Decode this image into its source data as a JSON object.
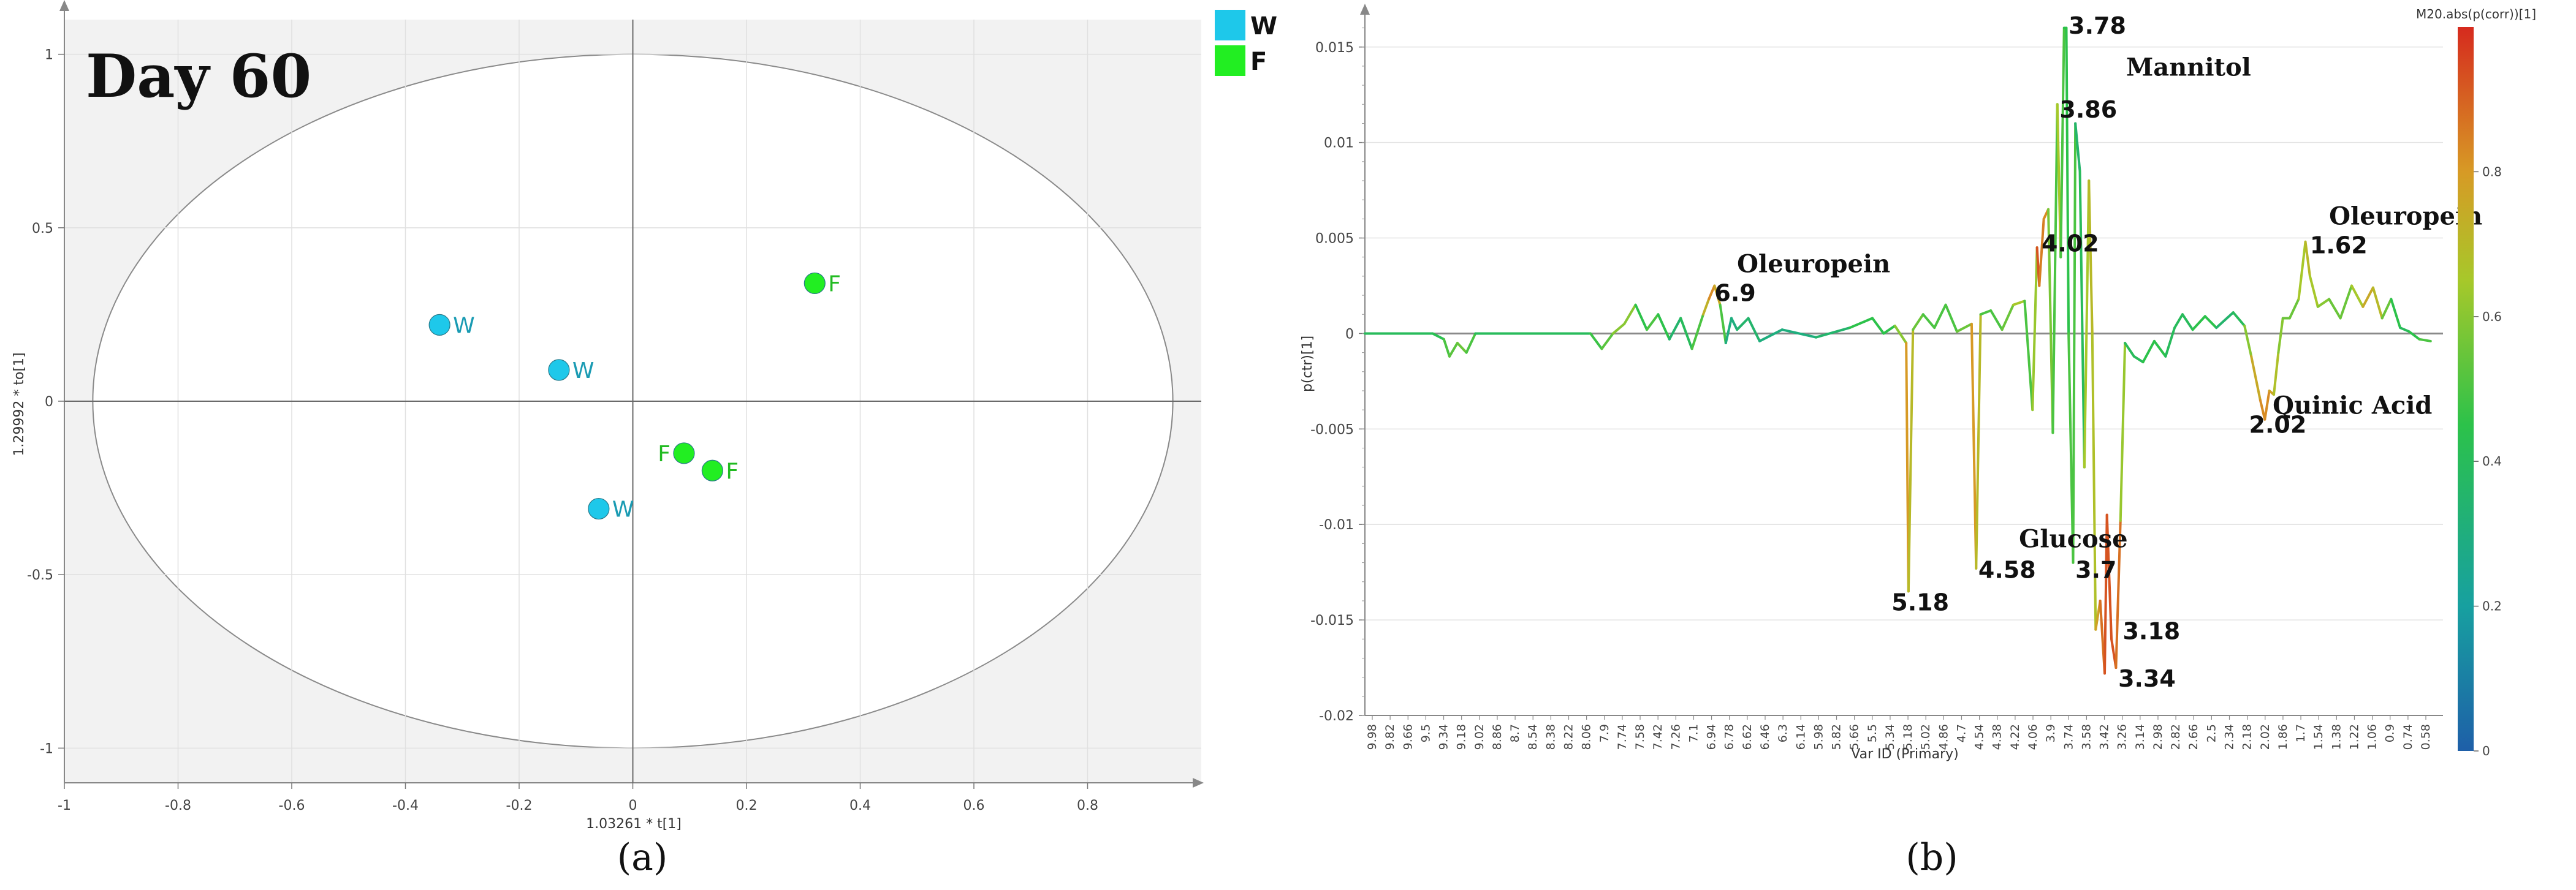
{
  "colors": {
    "W": "#1ec8ea",
    "W_label": "#1a9bb3",
    "F": "#22ee22",
    "F_label": "#22bb22",
    "plot_bg": "#f2f2f2",
    "ellipse_fill": "#ffffff"
  },
  "panel_a": {
    "caption": "(a)",
    "title": "Day 60",
    "legend": [
      {
        "key": "W",
        "label": "W"
      },
      {
        "key": "F",
        "label": "F"
      }
    ]
  },
  "panel_b": {
    "caption": "(b)"
  },
  "chart_data": [
    {
      "type": "scatter",
      "panel": "(a)",
      "title": "Day 60",
      "xlabel": "1.03261 * t[1]",
      "ylabel": "1.29992 * to[1]",
      "xlim": [
        -1,
        1
      ],
      "ylim": [
        -1.1,
        1.1
      ],
      "xticks": [
        "-1",
        "-0.8",
        "-0.6",
        "-0.4",
        "-0.2",
        "0",
        "0.2",
        "0.4",
        "0.6",
        "0.8"
      ],
      "yticks": [
        "1",
        "0.5",
        "0",
        "-0.5",
        "-1"
      ],
      "grid": true,
      "legend_position": "outside top-right",
      "ellipse": {
        "center": [
          0,
          0
        ],
        "rx": 0.95,
        "ry": 1.0
      },
      "series": [
        {
          "name": "W",
          "points": [
            {
              "x": -0.34,
              "y": 0.22
            },
            {
              "x": -0.13,
              "y": 0.09
            },
            {
              "x": -0.06,
              "y": -0.31
            }
          ]
        },
        {
          "name": "F",
          "points": [
            {
              "x": 0.32,
              "y": 0.34
            },
            {
              "x": 0.09,
              "y": -0.15
            },
            {
              "x": 0.14,
              "y": -0.2
            }
          ]
        }
      ]
    },
    {
      "type": "line",
      "panel": "(b)",
      "xlabel": "Var ID (Primary)",
      "ylabel": "p(ctr)[1]",
      "xlim": [
        10.0,
        0.44
      ],
      "ylim": [
        -0.02,
        0.0165
      ],
      "yticks": [
        "0.015",
        "0.01",
        "0.005",
        "0",
        "-0.005",
        "-0.01",
        "-0.015",
        "-0.02"
      ],
      "xticks": [
        "9.98",
        "9.82",
        "9.66",
        "9.5",
        "9.34",
        "9.18",
        "9.02",
        "8.86",
        "8.7",
        "8.54",
        "8.38",
        "8.22",
        "8.06",
        "7.9",
        "7.74",
        "7.58",
        "7.42",
        "7.26",
        "7.1",
        "6.94",
        "6.78",
        "6.62",
        "6.46",
        "6.3",
        "6.14",
        "5.98",
        "5.82",
        "5.66",
        "5.5",
        "5.34",
        "5.18",
        "5.02",
        "4.86",
        "4.7",
        "4.54",
        "4.38",
        "4.22",
        "4.06",
        "3.9",
        "3.74",
        "3.58",
        "3.42",
        "3.26",
        "3.14",
        "2.98",
        "2.82",
        "2.66",
        "2.5",
        "2.34",
        "2.18",
        "2.02",
        "1.86",
        "1.7",
        "1.54",
        "1.38",
        "1.22",
        "1.06",
        "0.9",
        "0.74",
        "0.58"
      ],
      "colorbar": {
        "title": "M20.abs(p(corr))[1]",
        "ticks": [
          "0.8",
          "0.6",
          "0.4",
          "0.2",
          "0"
        ],
        "range": [
          0,
          1
        ]
      },
      "points": [
        {
          "x": 10.0,
          "y": 0.0,
          "c": 0.4
        },
        {
          "x": 9.4,
          "y": 0.0,
          "c": 0.4
        },
        {
          "x": 9.3,
          "y": -0.0003,
          "c": 0.45
        },
        {
          "x": 9.25,
          "y": -0.0012,
          "c": 0.55
        },
        {
          "x": 9.18,
          "y": -0.0005,
          "c": 0.5
        },
        {
          "x": 9.1,
          "y": -0.001,
          "c": 0.6
        },
        {
          "x": 9.02,
          "y": 0.0,
          "c": 0.4
        },
        {
          "x": 8.0,
          "y": 0.0,
          "c": 0.4
        },
        {
          "x": 7.9,
          "y": -0.0008,
          "c": 0.55
        },
        {
          "x": 7.8,
          "y": 0.0,
          "c": 0.5
        },
        {
          "x": 7.7,
          "y": 0.0005,
          "c": 0.7
        },
        {
          "x": 7.6,
          "y": 0.0015,
          "c": 0.5
        },
        {
          "x": 7.5,
          "y": 0.0002,
          "c": 0.4
        },
        {
          "x": 7.4,
          "y": 0.001,
          "c": 0.6
        },
        {
          "x": 7.3,
          "y": -0.0003,
          "c": 0.3
        },
        {
          "x": 7.2,
          "y": 0.0008,
          "c": 0.4
        },
        {
          "x": 7.1,
          "y": -0.0008,
          "c": 0.4
        },
        {
          "x": 7.0,
          "y": 0.001,
          "c": 0.6
        },
        {
          "x": 6.95,
          "y": 0.0018,
          "c": 0.85
        },
        {
          "x": 6.9,
          "y": 0.0025,
          "c": 0.8
        },
        {
          "x": 6.85,
          "y": 0.0015,
          "c": 0.7
        },
        {
          "x": 6.8,
          "y": -0.0005,
          "c": 0.3
        },
        {
          "x": 6.75,
          "y": 0.0008,
          "c": 0.3
        },
        {
          "x": 6.7,
          "y": 0.0002,
          "c": 0.3
        },
        {
          "x": 6.6,
          "y": 0.0008,
          "c": 0.4
        },
        {
          "x": 6.5,
          "y": -0.0004,
          "c": 0.3
        },
        {
          "x": 6.3,
          "y": 0.0002,
          "c": 0.3
        },
        {
          "x": 6.0,
          "y": -0.0002,
          "c": 0.3
        },
        {
          "x": 5.7,
          "y": 0.0003,
          "c": 0.4
        },
        {
          "x": 5.5,
          "y": 0.0008,
          "c": 0.5
        },
        {
          "x": 5.4,
          "y": 0.0,
          "c": 0.4
        },
        {
          "x": 5.3,
          "y": 0.0004,
          "c": 0.5
        },
        {
          "x": 5.2,
          "y": -0.0005,
          "c": 0.7
        },
        {
          "x": 5.18,
          "y": -0.0135,
          "c": 0.9
        },
        {
          "x": 5.14,
          "y": 0.0002,
          "c": 0.5
        },
        {
          "x": 5.05,
          "y": 0.001,
          "c": 0.6
        },
        {
          "x": 4.95,
          "y": 0.0003,
          "c": 0.4
        },
        {
          "x": 4.85,
          "y": 0.0015,
          "c": 0.6
        },
        {
          "x": 4.75,
          "y": 0.0001,
          "c": 0.4
        },
        {
          "x": 4.62,
          "y": 0.0005,
          "c": 0.7
        },
        {
          "x": 4.58,
          "y": -0.0123,
          "c": 0.9
        },
        {
          "x": 4.54,
          "y": 0.001,
          "c": 0.5
        },
        {
          "x": 4.45,
          "y": 0.0012,
          "c": 0.5
        },
        {
          "x": 4.35,
          "y": 0.0002,
          "c": 0.5
        },
        {
          "x": 4.25,
          "y": 0.0015,
          "c": 0.6
        },
        {
          "x": 4.15,
          "y": 0.0017,
          "c": 0.7
        },
        {
          "x": 4.08,
          "y": -0.004,
          "c": 0.3
        },
        {
          "x": 4.04,
          "y": 0.0045,
          "c": 0.95
        },
        {
          "x": 4.02,
          "y": 0.0025,
          "c": 0.9
        },
        {
          "x": 3.98,
          "y": 0.006,
          "c": 0.8
        },
        {
          "x": 3.94,
          "y": 0.0065,
          "c": 0.85
        },
        {
          "x": 3.9,
          "y": -0.0052,
          "c": 0.3
        },
        {
          "x": 3.86,
          "y": 0.012,
          "c": 0.7
        },
        {
          "x": 3.83,
          "y": 0.004,
          "c": 0.6
        },
        {
          "x": 3.8,
          "y": 0.016,
          "c": 0.4
        },
        {
          "x": 3.78,
          "y": 0.016,
          "c": 0.5
        },
        {
          "x": 3.76,
          "y": 0.0,
          "c": 0.4
        },
        {
          "x": 3.72,
          "y": -0.012,
          "c": 0.6
        },
        {
          "x": 3.7,
          "y": 0.011,
          "c": 0.4
        },
        {
          "x": 3.66,
          "y": 0.0085,
          "c": 0.3
        },
        {
          "x": 3.62,
          "y": -0.007,
          "c": 0.5
        },
        {
          "x": 3.58,
          "y": 0.008,
          "c": 0.8
        },
        {
          "x": 3.55,
          "y": 0.0,
          "c": 0.6
        },
        {
          "x": 3.52,
          "y": -0.0155,
          "c": 0.75
        },
        {
          "x": 3.48,
          "y": -0.014,
          "c": 0.8
        },
        {
          "x": 3.44,
          "y": -0.0178,
          "c": 0.95
        },
        {
          "x": 3.42,
          "y": -0.0095,
          "c": 0.9
        },
        {
          "x": 3.38,
          "y": -0.016,
          "c": 0.95
        },
        {
          "x": 3.34,
          "y": -0.0175,
          "c": 0.9
        },
        {
          "x": 3.3,
          "y": -0.0098,
          "c": 0.85
        },
        {
          "x": 3.26,
          "y": -0.0005,
          "c": 0.4
        },
        {
          "x": 3.18,
          "y": -0.0012,
          "c": 0.4
        },
        {
          "x": 3.1,
          "y": -0.0015,
          "c": 0.4
        },
        {
          "x": 3.0,
          "y": -0.0004,
          "c": 0.5
        },
        {
          "x": 2.9,
          "y": -0.0012,
          "c": 0.4
        },
        {
          "x": 2.82,
          "y": 0.0003,
          "c": 0.4
        },
        {
          "x": 2.75,
          "y": 0.001,
          "c": 0.4
        },
        {
          "x": 2.66,
          "y": 0.0002,
          "c": 0.4
        },
        {
          "x": 2.55,
          "y": 0.0009,
          "c": 0.5
        },
        {
          "x": 2.45,
          "y": 0.0003,
          "c": 0.4
        },
        {
          "x": 2.3,
          "y": 0.0011,
          "c": 0.3
        },
        {
          "x": 2.2,
          "y": 0.0004,
          "c": 0.5
        },
        {
          "x": 2.14,
          "y": -0.0012,
          "c": 0.7
        },
        {
          "x": 2.06,
          "y": -0.0035,
          "c": 0.8
        },
        {
          "x": 2.02,
          "y": -0.0045,
          "c": 0.85
        },
        {
          "x": 1.98,
          "y": -0.003,
          "c": 0.8
        },
        {
          "x": 1.94,
          "y": -0.0032,
          "c": 0.75
        },
        {
          "x": 1.9,
          "y": -0.001,
          "c": 0.6
        },
        {
          "x": 1.86,
          "y": 0.0008,
          "c": 0.6
        },
        {
          "x": 1.8,
          "y": 0.0008,
          "c": 0.5
        },
        {
          "x": 1.72,
          "y": 0.0018,
          "c": 0.6
        },
        {
          "x": 1.66,
          "y": 0.0048,
          "c": 0.7
        },
        {
          "x": 1.62,
          "y": 0.003,
          "c": 0.7
        },
        {
          "x": 1.55,
          "y": 0.0014,
          "c": 0.6
        },
        {
          "x": 1.45,
          "y": 0.0018,
          "c": 0.6
        },
        {
          "x": 1.35,
          "y": 0.0008,
          "c": 0.5
        },
        {
          "x": 1.25,
          "y": 0.0025,
          "c": 0.6
        },
        {
          "x": 1.15,
          "y": 0.0014,
          "c": 0.7
        },
        {
          "x": 1.06,
          "y": 0.0024,
          "c": 0.8
        },
        {
          "x": 0.98,
          "y": 0.0008,
          "c": 0.6
        },
        {
          "x": 0.9,
          "y": 0.0018,
          "c": 0.5
        },
        {
          "x": 0.82,
          "y": 0.0003,
          "c": 0.4
        },
        {
          "x": 0.74,
          "y": 0.0001,
          "c": 0.4
        },
        {
          "x": 0.65,
          "y": -0.0003,
          "c": 0.5
        },
        {
          "x": 0.55,
          "y": -0.0004,
          "c": 0.5
        }
      ],
      "annotations": [
        {
          "text": "Mannitol",
          "kind": "compound",
          "x": 3.25,
          "y": 0.0135
        },
        {
          "text": "Oleuropein",
          "kind": "compound",
          "x": 6.7,
          "y": 0.0032
        },
        {
          "text": "Oleuropein",
          "kind": "compound",
          "x": 1.45,
          "y": 0.0057
        },
        {
          "text": "Quinic Acid",
          "kind": "compound",
          "x": 1.95,
          "y": -0.0042
        },
        {
          "text": "Glucose",
          "kind": "compound",
          "x": 4.2,
          "y": -0.0112
        },
        {
          "text": "3.78",
          "kind": "peak",
          "x": 3.76,
          "y": 0.0157
        },
        {
          "text": "3.86",
          "kind": "peak",
          "x": 3.84,
          "y": 0.0113
        },
        {
          "text": "4.02",
          "kind": "peak",
          "x": 4.0,
          "y": 0.0043
        },
        {
          "text": "6.9",
          "kind": "peak",
          "x": 6.9,
          "y": 0.0017
        },
        {
          "text": "1.62",
          "kind": "peak",
          "x": 1.62,
          "y": 0.0042
        },
        {
          "text": "2.02",
          "kind": "peak",
          "x": 2.16,
          "y": -0.0052
        },
        {
          "text": "5.18",
          "kind": "peak",
          "x": 5.33,
          "y": -0.0145
        },
        {
          "text": "4.58",
          "kind": "peak",
          "x": 4.56,
          "y": -0.0128
        },
        {
          "text": "3.7",
          "kind": "peak",
          "x": 3.7,
          "y": -0.0128
        },
        {
          "text": "3.18",
          "kind": "peak",
          "x": 3.28,
          "y": -0.016
        },
        {
          "text": "3.34",
          "kind": "peak",
          "x": 3.32,
          "y": -0.0185
        }
      ]
    }
  ]
}
